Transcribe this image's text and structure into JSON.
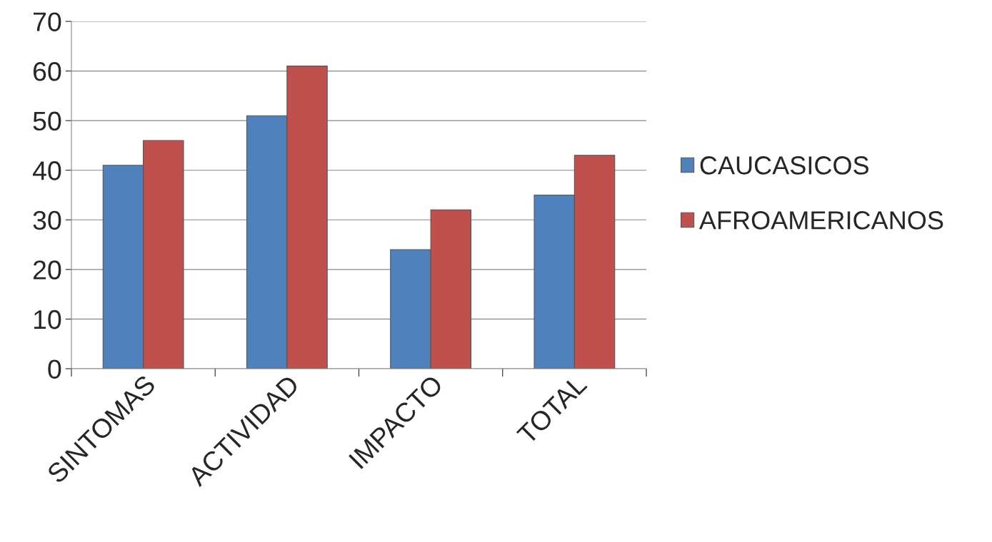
{
  "chart_data": {
    "type": "bar",
    "categories": [
      "SINTOMAS",
      "ACTIVIDAD",
      "IMPACTO",
      "TOTAL"
    ],
    "series": [
      {
        "name": "CAUCASICOS",
        "color": "#4f81bd",
        "values": [
          41,
          51,
          24,
          35
        ]
      },
      {
        "name": "AFROAMERICANOS",
        "color": "#c0504d",
        "values": [
          46,
          61,
          32,
          43
        ]
      }
    ],
    "ylim": [
      0,
      70
    ],
    "yticks": [
      0,
      10,
      20,
      30,
      40,
      50,
      60,
      70
    ],
    "grid": "y",
    "legend": "right"
  }
}
